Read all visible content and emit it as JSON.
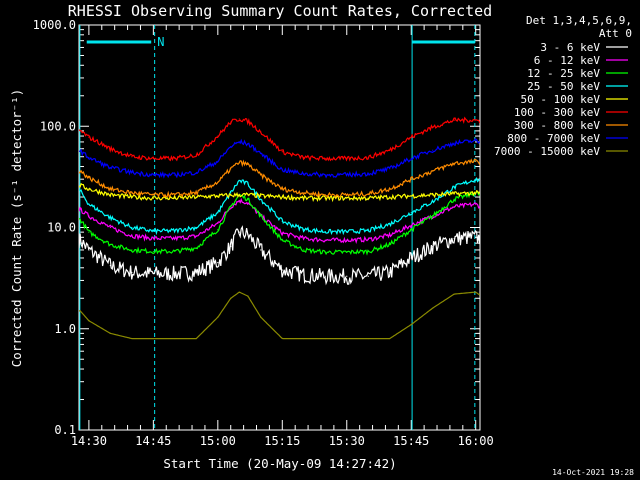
{
  "chart_data": {
    "type": "line",
    "title": "RHESSI Observing Summary Count Rates, Corrected",
    "xlabel": "Start Time (20-May-09 14:27:42)",
    "ylabel": "Corrected Count Rate (s⁻¹ detector⁻¹)",
    "yscale": "log",
    "ylim": [
      0.1,
      1000
    ],
    "y_ticks": [
      "0.1",
      "1.0",
      "10.0",
      "100.0",
      "1000.0"
    ],
    "xlim_minutes": [
      -2.3,
      91
    ],
    "x_ticks": [
      {
        "minute": 0,
        "label": "14:30"
      },
      {
        "minute": 15,
        "label": "14:45"
      },
      {
        "minute": 30,
        "label": "15:00"
      },
      {
        "minute": 45,
        "label": "15:15"
      },
      {
        "minute": 60,
        "label": "15:30"
      },
      {
        "minute": 75,
        "label": "15:45"
      },
      {
        "minute": 90,
        "label": "16:00"
      }
    ],
    "legend": {
      "position": "top-right",
      "header": [
        "Det 1,3,4,5,6,9,",
        "Att 0"
      ]
    },
    "night_markers": [
      {
        "minute": -2.1,
        "color": "#00e5ee"
      },
      {
        "minute": 15.3,
        "color": "#00e5ee"
      },
      {
        "minute": 75.2,
        "color": "#00e5ee"
      },
      {
        "minute": 89.8,
        "color": "#00e5ee"
      }
    ],
    "saa_bars": [
      {
        "from": -0.5,
        "to": 14.5,
        "label": "N"
      },
      {
        "from": 75.2,
        "to": 89.8,
        "label": ""
      }
    ],
    "series": [
      {
        "name": "3 - 6 keV",
        "color": "#ffffff",
        "x": [
          -2,
          0,
          5,
          10,
          15,
          20,
          25,
          30,
          33,
          35,
          37,
          40,
          45,
          50,
          55,
          60,
          65,
          70,
          75,
          80,
          85,
          90,
          92
        ],
        "y": [
          7.5,
          6,
          4.2,
          3.6,
          3.5,
          3.5,
          3.6,
          4.5,
          6.5,
          9,
          8.5,
          6,
          3.8,
          3.4,
          3.3,
          3.3,
          3.3,
          3.6,
          5,
          6.5,
          7.8,
          8,
          7.5
        ]
      },
      {
        "name": "6 - 12 keV",
        "color": "#ff00ff",
        "x": [
          -2,
          0,
          5,
          10,
          15,
          20,
          25,
          30,
          33,
          35,
          37,
          40,
          45,
          50,
          55,
          60,
          65,
          70,
          75,
          80,
          85,
          90,
          92
        ],
        "y": [
          15,
          13,
          10,
          8.3,
          7.8,
          7.8,
          8.2,
          11,
          16,
          18.5,
          17.5,
          13,
          8.8,
          7.8,
          7.5,
          7.5,
          7.6,
          8.4,
          10.5,
          13,
          16,
          17,
          15.5
        ]
      },
      {
        "name": "12 - 25 keV",
        "color": "#00ff00",
        "x": [
          -2,
          0,
          5,
          10,
          15,
          20,
          25,
          30,
          33,
          35,
          37,
          40,
          45,
          50,
          55,
          60,
          65,
          70,
          75,
          80,
          85,
          90,
          92
        ],
        "y": [
          12,
          9,
          6.8,
          6,
          5.8,
          5.8,
          6.3,
          9.5,
          16,
          21,
          19,
          13,
          7.5,
          6,
          5.7,
          5.7,
          5.8,
          6.8,
          9.5,
          13,
          19,
          22,
          20
        ]
      },
      {
        "name": "25 - 50 keV",
        "color": "#00ffff",
        "x": [
          -2,
          0,
          5,
          10,
          15,
          20,
          25,
          30,
          33,
          35,
          37,
          40,
          45,
          50,
          55,
          60,
          65,
          70,
          75,
          80,
          85,
          90,
          92
        ],
        "y": [
          23,
          17,
          12.5,
          10,
          9.2,
          9.3,
          10,
          14,
          22,
          29,
          27,
          19,
          11.5,
          9.6,
          9.1,
          9.1,
          9.3,
          10.8,
          14,
          18,
          25,
          30,
          28
        ]
      },
      {
        "name": "50 - 100 keV",
        "color": "#ffff00",
        "x": [
          -2,
          0,
          5,
          10,
          15,
          20,
          25,
          30,
          33,
          35,
          37,
          40,
          45,
          50,
          55,
          60,
          65,
          70,
          75,
          80,
          85,
          90,
          92
        ],
        "y": [
          26,
          24,
          21,
          20,
          19.5,
          19.5,
          20,
          20.5,
          20.8,
          21,
          21,
          20.5,
          20,
          19.5,
          19.5,
          19.5,
          19.5,
          20,
          20.5,
          21,
          21.5,
          22,
          21.5
        ]
      },
      {
        "name": "100 - 300 keV",
        "color": "#ff0000",
        "x": [
          -2,
          0,
          5,
          10,
          15,
          20,
          25,
          30,
          33,
          35,
          37,
          40,
          45,
          50,
          55,
          60,
          65,
          70,
          75,
          80,
          85,
          90,
          92
        ],
        "y": [
          90,
          78,
          60,
          50,
          48,
          48,
          52,
          80,
          110,
          118,
          112,
          88,
          56,
          49,
          48,
          48,
          49,
          58,
          78,
          98,
          115,
          115,
          108
        ]
      },
      {
        "name": "300 - 800 keV",
        "color": "#ff8c00",
        "x": [
          -2,
          0,
          5,
          10,
          15,
          20,
          25,
          30,
          33,
          35,
          37,
          40,
          45,
          50,
          55,
          60,
          65,
          70,
          75,
          80,
          85,
          90,
          92
        ],
        "y": [
          36,
          31,
          24,
          22,
          21,
          21,
          22,
          28,
          38,
          44,
          42,
          33,
          24,
          22,
          21,
          21,
          21.5,
          24,
          30,
          36,
          43,
          45,
          42
        ]
      },
      {
        "name": "800 - 7000 keV",
        "color": "#0000ff",
        "x": [
          -2,
          0,
          5,
          10,
          15,
          20,
          25,
          30,
          33,
          35,
          37,
          40,
          45,
          50,
          55,
          60,
          65,
          70,
          75,
          80,
          85,
          90,
          92
        ],
        "y": [
          57,
          49,
          39,
          35,
          33,
          33,
          35,
          45,
          63,
          70,
          67,
          54,
          37,
          34,
          33,
          33,
          34,
          38,
          48,
          58,
          68,
          72,
          66
        ]
      },
      {
        "name": "7000 - 15000 keV",
        "color": "#8b8b00",
        "x": [
          -2,
          0,
          5,
          10,
          15,
          20,
          25,
          30,
          33,
          35,
          37,
          40,
          45,
          50,
          55,
          60,
          65,
          70,
          75,
          80,
          85,
          90,
          92
        ],
        "y": [
          1.5,
          1.2,
          0.9,
          0.8,
          0.8,
          0.8,
          0.8,
          1.3,
          2,
          2.3,
          2.1,
          1.3,
          0.8,
          0.8,
          0.8,
          0.8,
          0.8,
          0.8,
          1.1,
          1.6,
          2.2,
          2.3,
          2
        ]
      }
    ],
    "legend_order": [
      "3 - 6 keV",
      "6 - 12 keV",
      "12 - 25 keV",
      "25 - 50 keV",
      "50 - 100 keV",
      "100 - 300 keV",
      "300 - 800 keV",
      "800 - 7000 keV",
      "7000 - 15000 keV"
    ],
    "footer_date": "14-Oct-2021 19:28"
  }
}
